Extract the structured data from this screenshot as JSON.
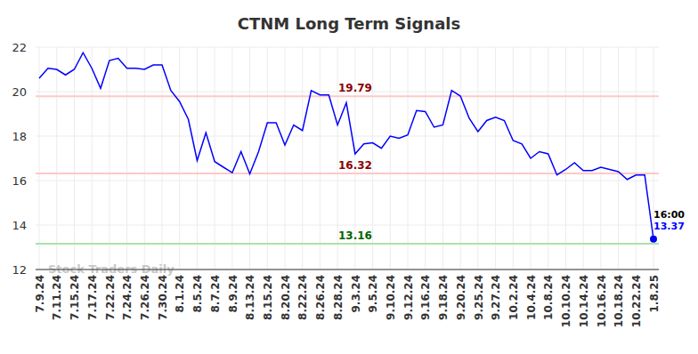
{
  "chart_data": {
    "type": "line",
    "title": "CTNM Long Term Signals",
    "watermark": "Stock Traders Daily",
    "color": "#0000ff",
    "grid": true,
    "marker": "circle",
    "categories": [
      "7.9.24",
      null,
      "7.11.24",
      null,
      "7.15.24",
      null,
      "7.17.24",
      null,
      "7.22.24",
      null,
      "7.24.24",
      null,
      "7.26.24",
      null,
      "7.30.24",
      null,
      "8.1.24",
      null,
      "8.5.24",
      null,
      "8.7.24",
      null,
      "8.9.24",
      null,
      "8.13.24",
      null,
      "8.15.24",
      null,
      "8.20.24",
      null,
      "8.22.24",
      null,
      "8.26.24",
      null,
      "8.28.24",
      null,
      "9.3.24",
      null,
      "9.5.24",
      null,
      "9.10.24",
      null,
      "9.12.24",
      null,
      "9.16.24",
      null,
      "9.18.24",
      null,
      "9.20.24",
      null,
      "9.25.24",
      null,
      "9.27.24",
      null,
      "10.2.24",
      null,
      "10.4.24",
      null,
      "10.8.24",
      null,
      "10.10.24",
      null,
      "10.14.24",
      null,
      "10.16.24",
      null,
      "10.18.24",
      null,
      "10.22.24",
      null,
      "1.8.25"
    ],
    "values": [
      20.6,
      21.05,
      21.0,
      20.75,
      21.0,
      21.75,
      21.05,
      20.15,
      21.4,
      21.5,
      21.05,
      21.05,
      21.0,
      21.2,
      21.2,
      20.05,
      19.55,
      18.75,
      16.9,
      18.15,
      16.85,
      16.6,
      16.35,
      17.3,
      16.3,
      17.3,
      18.6,
      18.6,
      17.6,
      18.5,
      18.25,
      20.05,
      19.85,
      19.85,
      18.5,
      19.5,
      17.2,
      17.65,
      17.7,
      17.45,
      18.0,
      17.9,
      18.05,
      19.15,
      19.1,
      18.4,
      18.5,
      20.05,
      19.8,
      18.8,
      18.2,
      18.7,
      18.85,
      18.7,
      17.8,
      17.65,
      17.0,
      17.3,
      17.2,
      16.25,
      16.5,
      16.8,
      16.45,
      16.45,
      16.6,
      16.5,
      16.4,
      16.05,
      16.25,
      16.25,
      13.37
    ],
    "last_time": "16:00",
    "levels": [
      {
        "value": 19.79,
        "color": "#ffc8c8",
        "label_color": "#8b0000"
      },
      {
        "value": 16.32,
        "color": "#ffc8c8",
        "label_color": "#8b0000"
      },
      {
        "value": 13.16,
        "color": "#a8e4a8",
        "label_color": "#006400"
      }
    ],
    "ylim": [
      12,
      22
    ],
    "yticks": [
      12,
      14,
      16,
      18,
      20,
      22
    ]
  }
}
